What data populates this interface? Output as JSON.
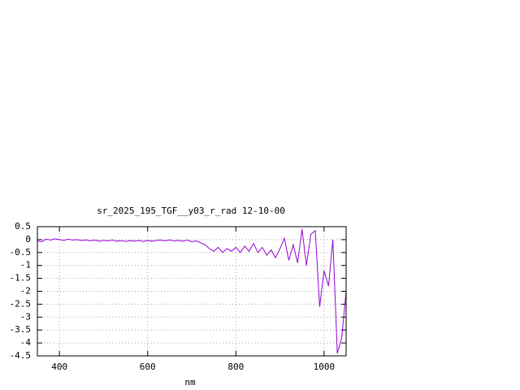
{
  "chart_data": {
    "type": "line",
    "title": "sr_2025_195_TGF__y03_r_rad 12-10-00",
    "x_label": "nm",
    "x": [
      350,
      360,
      370,
      380,
      390,
      400,
      410,
      420,
      430,
      440,
      450,
      460,
      470,
      480,
      490,
      500,
      510,
      520,
      530,
      540,
      550,
      560,
      570,
      580,
      590,
      600,
      610,
      620,
      630,
      640,
      650,
      660,
      670,
      680,
      690,
      700,
      710,
      720,
      730,
      740,
      750,
      760,
      770,
      780,
      790,
      800,
      810,
      820,
      830,
      840,
      850,
      860,
      870,
      880,
      890,
      900,
      910,
      920,
      930,
      940,
      950,
      960,
      970,
      980,
      990,
      1000,
      1010,
      1020,
      1030,
      1040,
      1050
    ],
    "series": [
      {
        "color": "#9400d3",
        "values": [
          -0.05,
          -0.08,
          0.02,
          -0.02,
          0.03,
          0.0,
          -0.03,
          0.02,
          -0.02,
          0.0,
          -0.04,
          -0.01,
          -0.05,
          -0.02,
          -0.06,
          -0.03,
          -0.05,
          -0.02,
          -0.06,
          -0.04,
          -0.07,
          -0.04,
          -0.06,
          -0.03,
          -0.07,
          -0.04,
          -0.06,
          -0.03,
          -0.02,
          -0.05,
          -0.01,
          -0.05,
          -0.03,
          -0.06,
          -0.02,
          -0.08,
          -0.05,
          -0.12,
          -0.2,
          -0.35,
          -0.45,
          -0.3,
          -0.5,
          -0.35,
          -0.45,
          -0.3,
          -0.5,
          -0.25,
          -0.45,
          -0.15,
          -0.5,
          -0.3,
          -0.6,
          -0.4,
          -0.7,
          -0.35,
          0.05,
          -0.8,
          -0.2,
          -0.9,
          0.4,
          -1.0,
          0.2,
          0.35,
          -2.6,
          -1.2,
          -1.8,
          0.0,
          -4.4,
          -3.8,
          -2.0
        ]
      }
    ],
    "xlim": [
      350,
      1050
    ],
    "xticks": [
      400,
      600,
      800,
      1000
    ],
    "ylim": [
      -4.5,
      0.5
    ],
    "yticks": [
      0.5,
      0,
      -0.5,
      -1,
      -1.5,
      -2,
      -2.5,
      -3,
      -3.5,
      -4,
      -4.5
    ],
    "grid": true
  }
}
